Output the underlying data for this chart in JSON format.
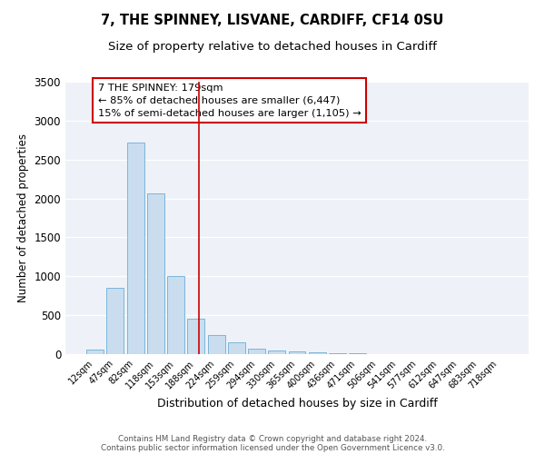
{
  "title": "7, THE SPINNEY, LISVANE, CARDIFF, CF14 0SU",
  "subtitle": "Size of property relative to detached houses in Cardiff",
  "xlabel": "Distribution of detached houses by size in Cardiff",
  "ylabel": "Number of detached properties",
  "bar_labels": [
    "12sqm",
    "47sqm",
    "82sqm",
    "118sqm",
    "153sqm",
    "188sqm",
    "224sqm",
    "259sqm",
    "294sqm",
    "330sqm",
    "365sqm",
    "400sqm",
    "436sqm",
    "471sqm",
    "506sqm",
    "541sqm",
    "577sqm",
    "612sqm",
    "647sqm",
    "683sqm",
    "718sqm"
  ],
  "bar_values": [
    55,
    850,
    2720,
    2070,
    1005,
    455,
    245,
    150,
    70,
    50,
    35,
    20,
    15,
    8,
    5,
    0,
    0,
    0,
    0,
    0,
    0
  ],
  "bar_color": "#c9ddef",
  "bar_edge_color": "#6aaed6",
  "vline_x": 5.14,
  "vline_color": "#cc0000",
  "annotation_line1": "7 THE SPINNEY: 179sqm",
  "annotation_line2": "← 85% of detached houses are smaller (6,447)",
  "annotation_line3": "15% of semi-detached houses are larger (1,105) →",
  "ylim": [
    0,
    3500
  ],
  "yticks": [
    0,
    500,
    1000,
    1500,
    2000,
    2500,
    3000,
    3500
  ],
  "bg_color": "#eef2f8",
  "footer1": "Contains HM Land Registry data © Crown copyright and database right 2024.",
  "footer2": "Contains public sector information licensed under the Open Government Licence v3.0.",
  "title_fontsize": 10.5,
  "subtitle_fontsize": 9.5,
  "ylabel_text": "Number of detached properties"
}
